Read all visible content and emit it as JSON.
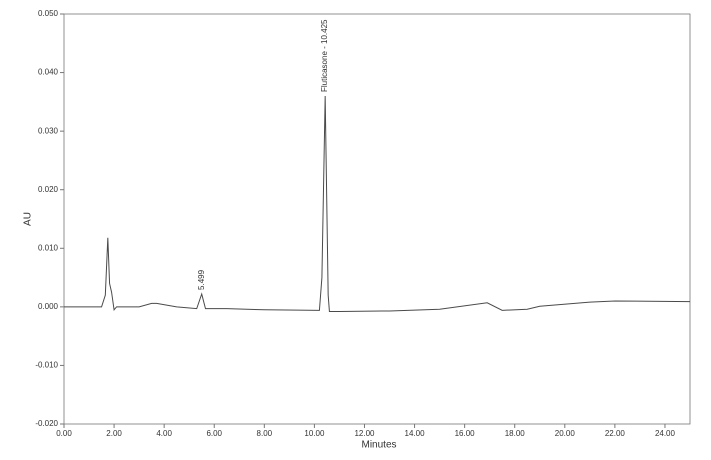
{
  "chart_data": {
    "type": "line",
    "x_label": "Minutes",
    "y_label": "AU",
    "xlim": [
      0,
      25
    ],
    "ylim": [
      -0.02,
      0.05
    ],
    "xticks": [
      {
        "value": 0,
        "label": "0.00"
      },
      {
        "value": 2,
        "label": "2.00"
      },
      {
        "value": 4,
        "label": "4.00"
      },
      {
        "value": 6,
        "label": "6.00"
      },
      {
        "value": 8,
        "label": "8.00"
      },
      {
        "value": 10,
        "label": "10.00"
      },
      {
        "value": 12,
        "label": "12.00"
      },
      {
        "value": 14,
        "label": "14.00"
      },
      {
        "value": 16,
        "label": "16.00"
      },
      {
        "value": 18,
        "label": "18.00"
      },
      {
        "value": 20,
        "label": "20.00"
      },
      {
        "value": 22,
        "label": "22.00"
      },
      {
        "value": 24,
        "label": "24.00"
      }
    ],
    "yticks": [
      {
        "value": -0.02,
        "label": "-0.020"
      },
      {
        "value": -0.01,
        "label": "-0.010"
      },
      {
        "value": 0,
        "label": "0.000"
      },
      {
        "value": 0.01,
        "label": "0.010"
      },
      {
        "value": 0.02,
        "label": "0.020"
      },
      {
        "value": 0.03,
        "label": "0.030"
      },
      {
        "value": 0.04,
        "label": "0.040"
      },
      {
        "value": 0.05,
        "label": "0.050"
      }
    ],
    "color": "#4a4a4a",
    "x": [
      0,
      1.5,
      1.65,
      1.75,
      1.82,
      1.9,
      2.0,
      2.1,
      3.0,
      3.5,
      3.7,
      4.5,
      5.3,
      5.5,
      5.65,
      6.5,
      8,
      10.2,
      10.3,
      10.43,
      10.55,
      10.6,
      11,
      13,
      15,
      16.9,
      17.5,
      18.5,
      19,
      21,
      22,
      25
    ],
    "values": [
      0,
      0,
      0.002,
      0.0118,
      0.004,
      0.0025,
      -0.0005,
      0,
      0,
      0.0006,
      0.0006,
      0,
      -0.0003,
      0.0022,
      -0.0003,
      -0.0003,
      -0.0005,
      -0.0006,
      0.005,
      0.036,
      0.002,
      -0.0008,
      -0.0008,
      -0.0007,
      -0.0004,
      0.0007,
      -0.0006,
      -0.0004,
      0.0001,
      0.0008,
      0.001,
      0.0009
    ],
    "annotations": [
      {
        "text": "5.499",
        "x": 5.499
      },
      {
        "text": "Fluticasone - 10.425",
        "x": 10.425
      }
    ]
  }
}
